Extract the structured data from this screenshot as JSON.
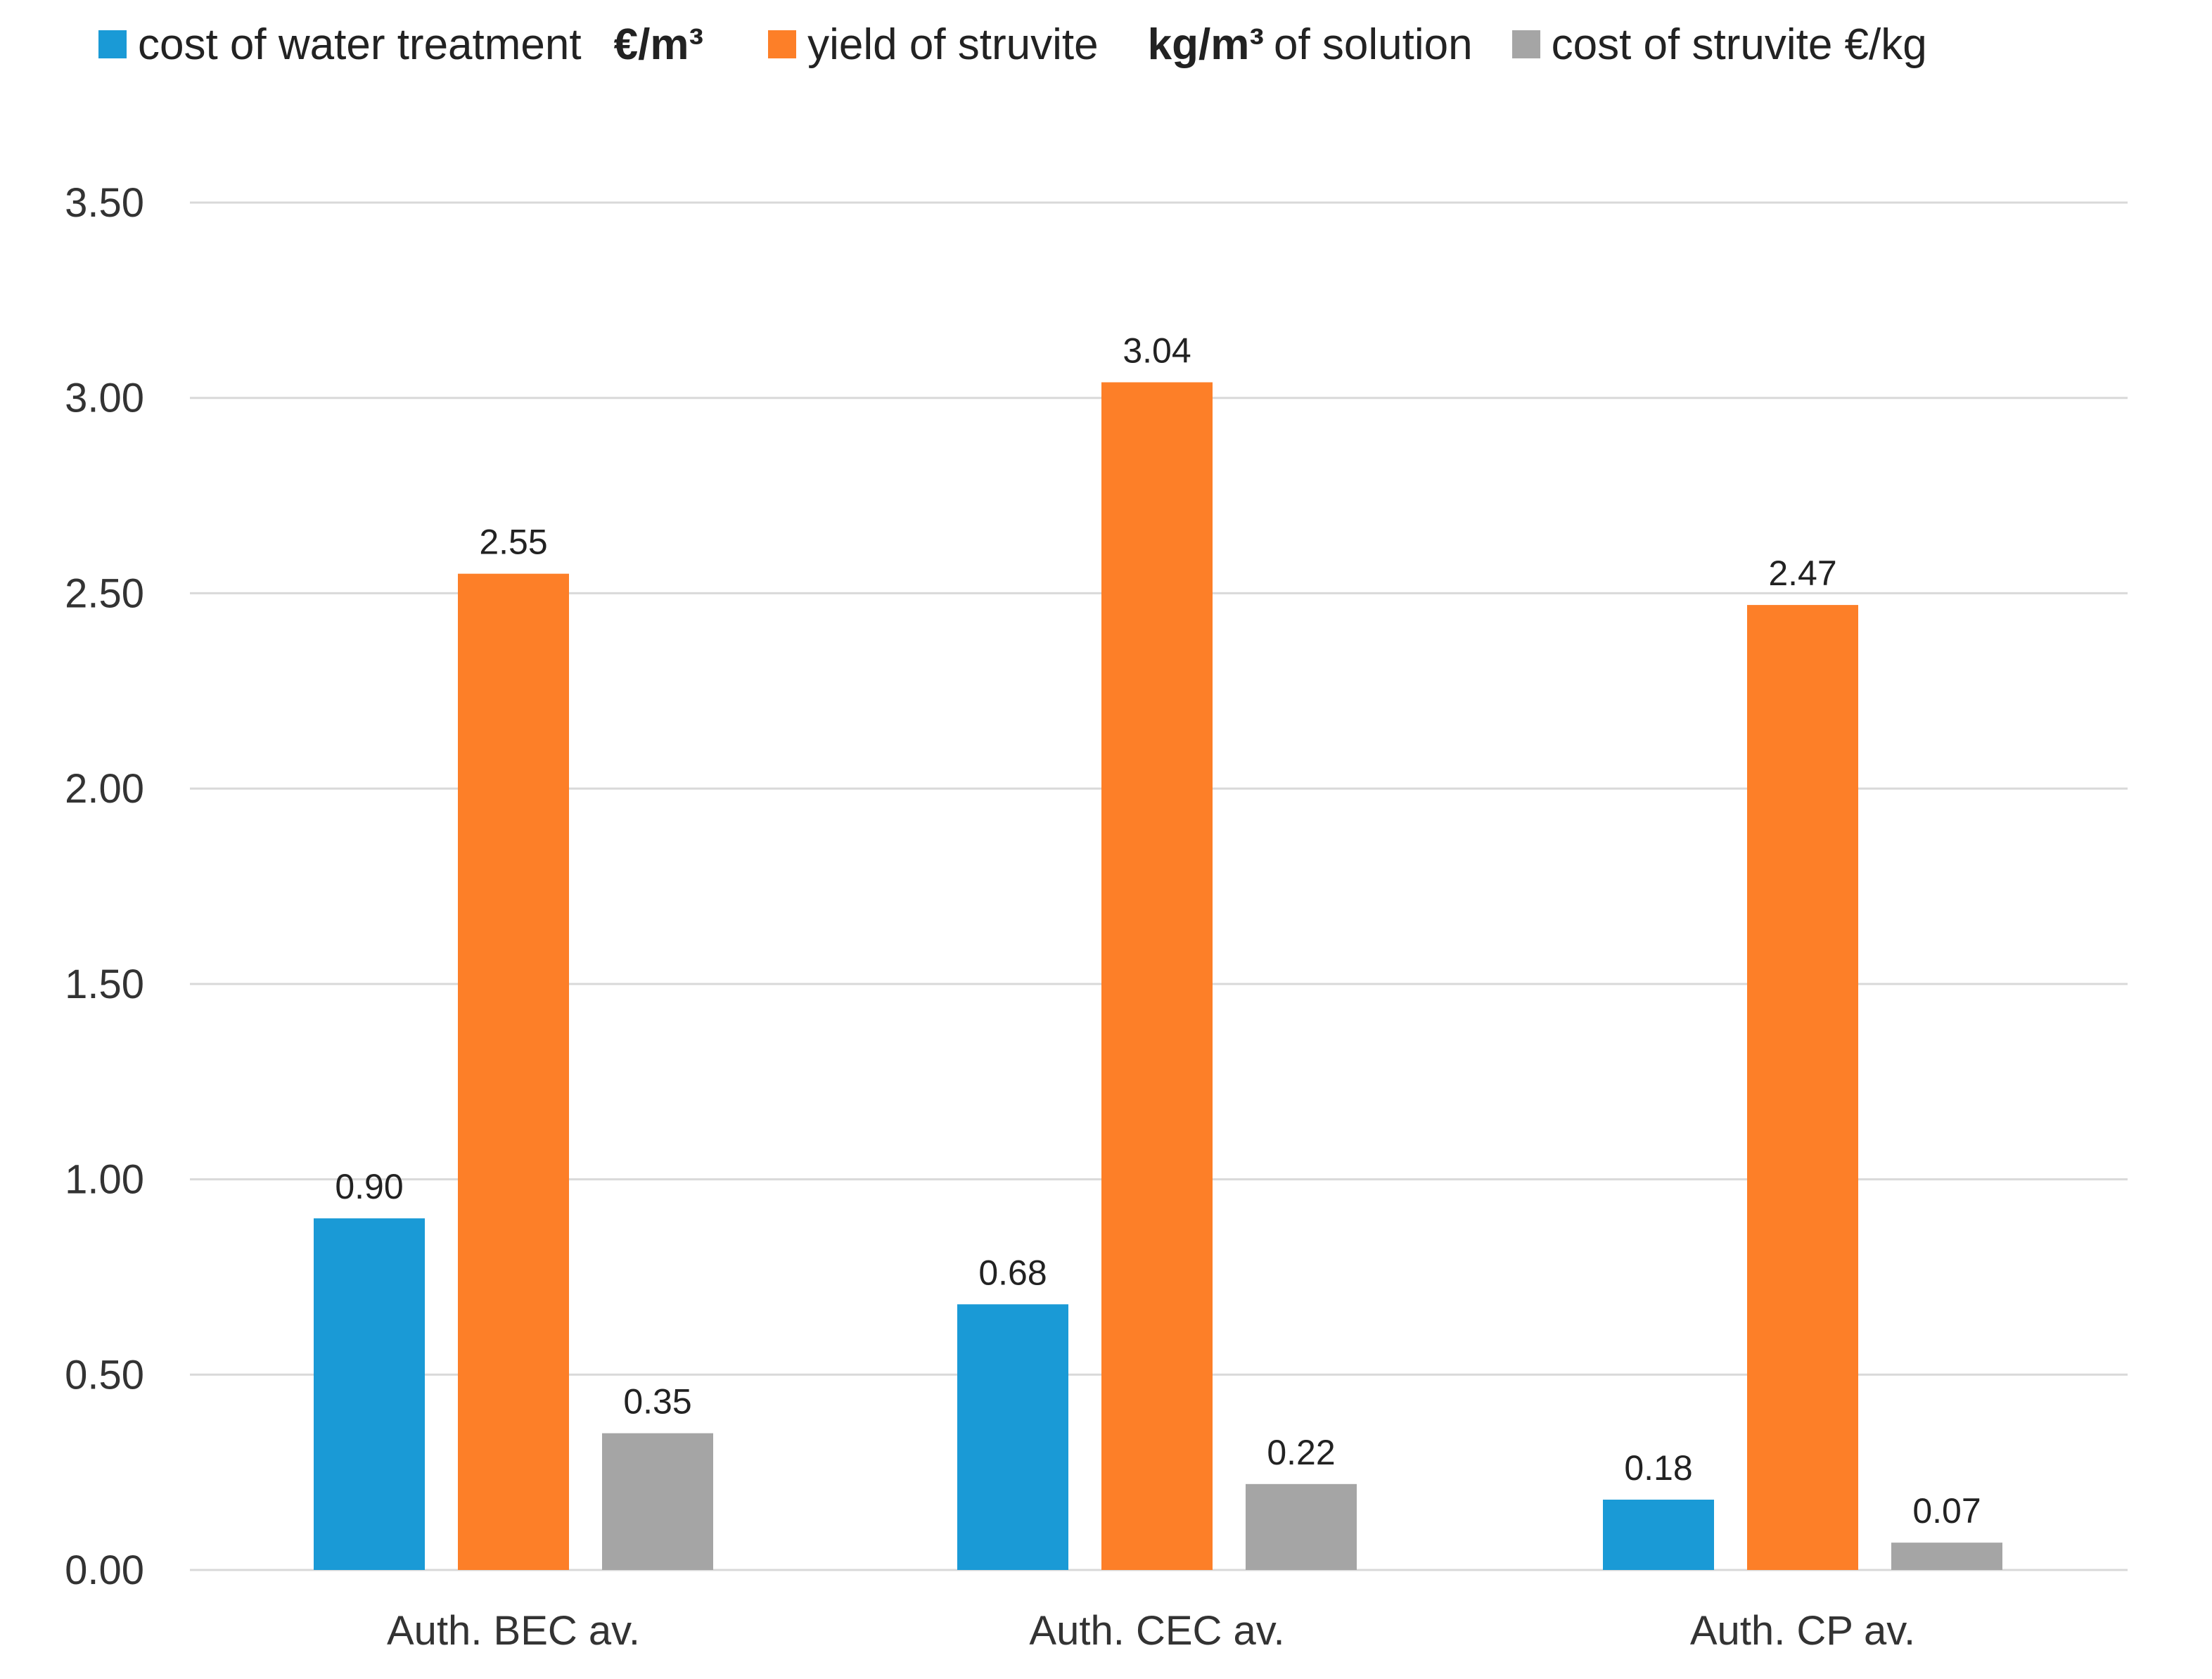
{
  "chart_data": {
    "type": "bar",
    "categories": [
      "Auth. BEC av.",
      "Auth. CEC av.",
      "Auth. CP av."
    ],
    "series": [
      {
        "name": "cost of water treatment",
        "unit": "€/m³",
        "color": "#1a9ad6",
        "values": [
          0.9,
          0.68,
          0.18
        ],
        "labels": [
          "0.90",
          "0.68",
          "0.18"
        ]
      },
      {
        "name": "yield of struvite",
        "unit": "kg/m³",
        "unit_suffix": "of solution",
        "color": "#fd7f28",
        "values": [
          2.55,
          3.04,
          2.47
        ],
        "labels": [
          "2.55",
          "3.04",
          "2.47"
        ]
      },
      {
        "name": "cost of struvite €/kg",
        "color": "#a5a5a5",
        "values": [
          0.35,
          0.22,
          0.07
        ],
        "labels": [
          "0.35",
          "0.22",
          "0.07"
        ]
      }
    ],
    "ylim": [
      0,
      3.5
    ],
    "yticks": [
      "0.00",
      "0.50",
      "1.00",
      "1.50",
      "2.00",
      "2.50",
      "3.00",
      "3.50"
    ],
    "gridline_color": "#d9d9d9",
    "grid": true,
    "legend_position": "top",
    "title": "",
    "xlabel": "",
    "ylabel": ""
  }
}
